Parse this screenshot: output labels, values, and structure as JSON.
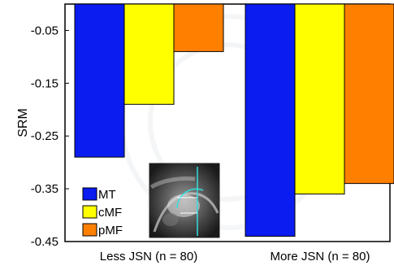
{
  "chart_data": {
    "type": "bar",
    "ylabel": "SRM",
    "categories": [
      "Less JSN (n = 80)",
      "More JSN (n = 80)"
    ],
    "yticks": [
      -0.05,
      -0.15,
      -0.25,
      -0.35,
      -0.45
    ],
    "ytick_labels": [
      "-0.05",
      "-0.15",
      "-0.25",
      "-0.35",
      "-0.45"
    ],
    "ylim": [
      -0.45,
      0.0
    ],
    "grid": false,
    "legend": "lower-left",
    "series": [
      {
        "name": "MT",
        "color": "#0a1cf0",
        "values": [
          -0.29,
          -0.44
        ]
      },
      {
        "name": "cMF",
        "color": "#ffff00",
        "values": [
          -0.19,
          -0.36
        ]
      },
      {
        "name": "pMF",
        "color": "#ff8000",
        "values": [
          -0.09,
          -0.34
        ]
      }
    ],
    "inset": "knee-mri-image"
  }
}
